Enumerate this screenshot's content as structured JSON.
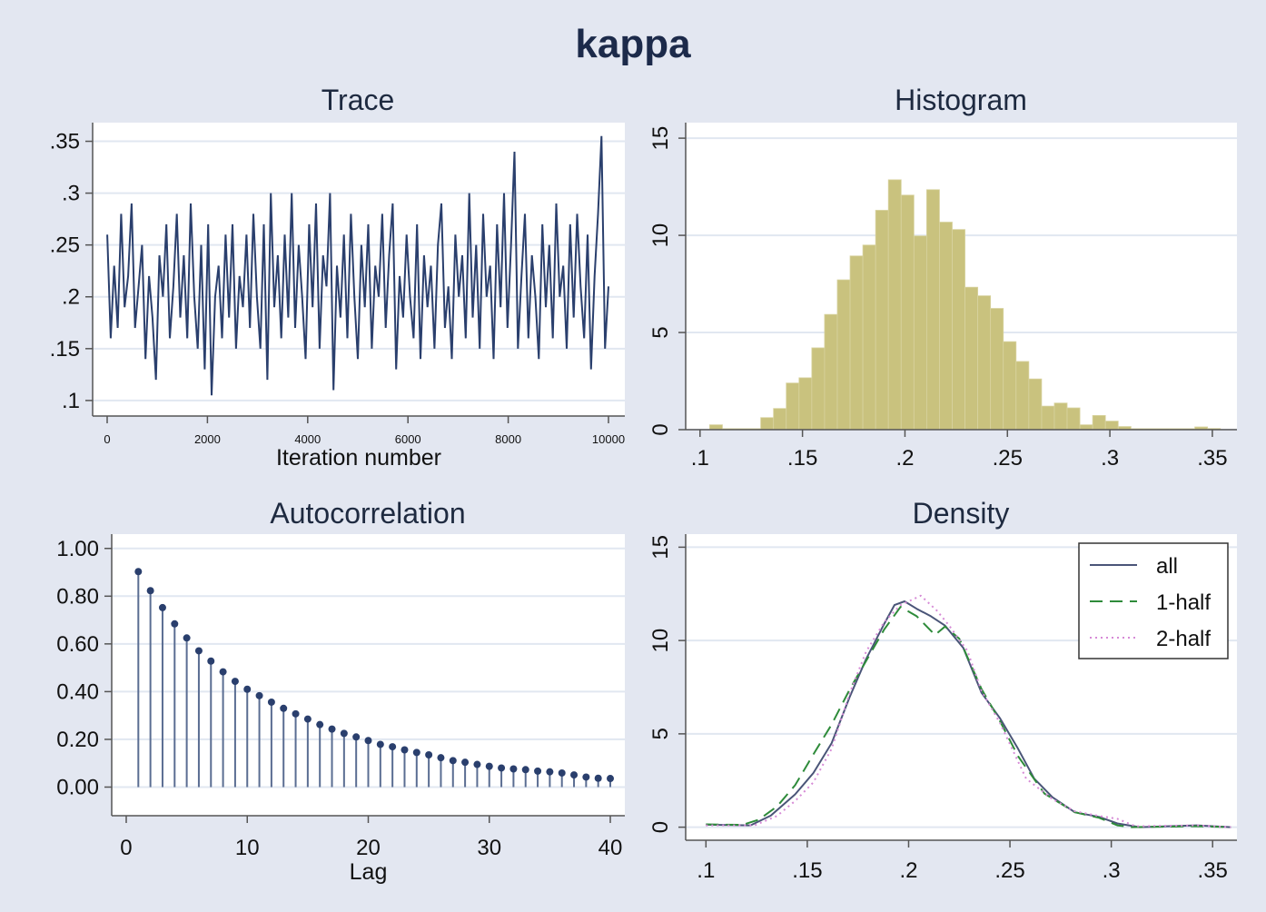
{
  "title": "kappa",
  "colors": {
    "background": "#e3e7f1",
    "line": "#2a3f6d",
    "bar": "#c9c27e",
    "grid": "#e1e7f1",
    "dash": "#2e8b3a",
    "dot": "#d68ad6"
  },
  "chart_data": [
    {
      "type": "line",
      "title": "Trace",
      "xlabel": "Iteration number",
      "ylabel": "",
      "x_range": [
        1,
        10000
      ],
      "xticks": [
        "0",
        "2000",
        "4000",
        "6000",
        "8000",
        "10000"
      ],
      "xtick_values": [
        0,
        2000,
        4000,
        6000,
        8000,
        10000
      ],
      "yticks": [
        ".1",
        ".15",
        ".2",
        ".25",
        ".3",
        ".35"
      ],
      "ytick_values": [
        0.1,
        0.15,
        0.2,
        0.25,
        0.3,
        0.35
      ],
      "ylim": [
        0.085,
        0.368
      ],
      "grid": true,
      "values": [
        0.26,
        0.16,
        0.23,
        0.17,
        0.28,
        0.19,
        0.22,
        0.29,
        0.17,
        0.21,
        0.25,
        0.14,
        0.22,
        0.18,
        0.12,
        0.24,
        0.2,
        0.27,
        0.16,
        0.21,
        0.28,
        0.18,
        0.24,
        0.16,
        0.29,
        0.2,
        0.15,
        0.25,
        0.13,
        0.27,
        0.105,
        0.2,
        0.23,
        0.16,
        0.26,
        0.18,
        0.27,
        0.15,
        0.22,
        0.19,
        0.26,
        0.17,
        0.28,
        0.2,
        0.15,
        0.27,
        0.12,
        0.3,
        0.19,
        0.24,
        0.16,
        0.26,
        0.18,
        0.3,
        0.17,
        0.25,
        0.2,
        0.14,
        0.27,
        0.19,
        0.29,
        0.15,
        0.24,
        0.21,
        0.3,
        0.11,
        0.23,
        0.18,
        0.26,
        0.16,
        0.28,
        0.2,
        0.14,
        0.25,
        0.19,
        0.27,
        0.15,
        0.23,
        0.2,
        0.28,
        0.17,
        0.24,
        0.29,
        0.13,
        0.22,
        0.18,
        0.26,
        0.2,
        0.16,
        0.27,
        0.14,
        0.24,
        0.19,
        0.23,
        0.15,
        0.25,
        0.29,
        0.17,
        0.21,
        0.14,
        0.26,
        0.2,
        0.24,
        0.16,
        0.3,
        0.18,
        0.25,
        0.15,
        0.28,
        0.2,
        0.23,
        0.14,
        0.27,
        0.19,
        0.3,
        0.17,
        0.25,
        0.34,
        0.15,
        0.22,
        0.28,
        0.16,
        0.24,
        0.2,
        0.14,
        0.27,
        0.19,
        0.25,
        0.16,
        0.29,
        0.2,
        0.23,
        0.15,
        0.27,
        0.18,
        0.28,
        0.21,
        0.16,
        0.26,
        0.13,
        0.22,
        0.28,
        0.355,
        0.15,
        0.21
      ]
    },
    {
      "type": "bar",
      "title": "Histogram",
      "xticks": [
        ".1",
        ".15",
        ".2",
        ".25",
        ".3",
        ".35"
      ],
      "xtick_values": [
        0.1,
        0.15,
        0.2,
        0.25,
        0.3,
        0.35
      ],
      "yticks": [
        "0",
        "5",
        "10",
        "15"
      ],
      "ytick_values": [
        0,
        5,
        10,
        15
      ],
      "xlim": [
        0.093,
        0.362
      ],
      "ylim": [
        0,
        15.8
      ],
      "grid": true,
      "bin_start": 0.1047,
      "bin_width": 0.00623,
      "values": [
        0.25,
        0.05,
        0.05,
        0.05,
        0.62,
        1.09,
        2.4,
        2.67,
        4.21,
        5.93,
        7.71,
        8.94,
        9.5,
        11.29,
        12.86,
        12.07,
        9.97,
        12.35,
        10.68,
        10.3,
        7.33,
        6.89,
        6.24,
        4.53,
        3.51,
        2.61,
        1.21,
        1.37,
        1.12,
        0.25,
        0.73,
        0.44,
        0.16,
        0.05,
        0.05,
        0.05,
        0.05,
        0.05,
        0.14,
        0.06
      ]
    },
    {
      "type": "bar",
      "title": "Autocorrelation",
      "xlabel": "Lag",
      "xticks": [
        "0",
        "10",
        "20",
        "30",
        "40"
      ],
      "xtick_values": [
        0,
        10,
        20,
        30,
        40
      ],
      "yticks": [
        "0.00",
        "0.20",
        "0.40",
        "0.60",
        "0.80",
        "1.00"
      ],
      "ytick_values": [
        0,
        0.2,
        0.4,
        0.6,
        0.8,
        1.0
      ],
      "xlim": [
        -1.2,
        41.2
      ],
      "ylim": [
        -0.12,
        1.06
      ],
      "grid": true,
      "lags": [
        1,
        2,
        3,
        4,
        5,
        6,
        7,
        8,
        9,
        10,
        11,
        12,
        13,
        14,
        15,
        16,
        17,
        18,
        19,
        20,
        21,
        22,
        23,
        24,
        25,
        26,
        27,
        28,
        29,
        30,
        31,
        32,
        33,
        34,
        35,
        36,
        37,
        38,
        39,
        40
      ],
      "values": [
        0.903,
        0.823,
        0.752,
        0.684,
        0.625,
        0.571,
        0.528,
        0.483,
        0.443,
        0.41,
        0.383,
        0.356,
        0.33,
        0.307,
        0.285,
        0.262,
        0.243,
        0.225,
        0.21,
        0.195,
        0.179,
        0.169,
        0.156,
        0.145,
        0.135,
        0.123,
        0.111,
        0.104,
        0.095,
        0.087,
        0.08,
        0.076,
        0.073,
        0.067,
        0.064,
        0.059,
        0.051,
        0.042,
        0.037,
        0.036
      ]
    },
    {
      "type": "line",
      "title": "Density",
      "xticks": [
        ".1",
        ".15",
        ".2",
        ".25",
        ".3",
        ".35"
      ],
      "xtick_values": [
        0.1,
        0.15,
        0.2,
        0.25,
        0.3,
        0.35
      ],
      "yticks": [
        "0",
        "5",
        "10",
        "15"
      ],
      "ytick_values": [
        0,
        5,
        10,
        15
      ],
      "xlim": [
        0.09,
        0.362
      ],
      "ylim": [
        -0.7,
        15.7
      ],
      "grid": true,
      "legend": "top-right",
      "series": [
        {
          "name": "all",
          "style": "solid",
          "x": [
            0.1,
            0.122,
            0.132,
            0.144,
            0.153,
            0.162,
            0.171,
            0.179,
            0.188,
            0.193,
            0.198,
            0.204,
            0.211,
            0.218,
            0.227,
            0.236,
            0.245,
            0.254,
            0.262,
            0.271,
            0.282,
            0.294,
            0.303,
            0.314,
            0.342,
            0.359
          ],
          "y": [
            0.13,
            0.1,
            0.62,
            1.76,
            2.9,
            4.5,
            7.0,
            9.0,
            10.9,
            11.9,
            12.1,
            11.7,
            11.3,
            10.8,
            9.6,
            7.2,
            5.85,
            4.2,
            2.6,
            1.6,
            0.8,
            0.55,
            0.2,
            0.0,
            0.1,
            0.0
          ]
        },
        {
          "name": "1-half",
          "style": "dash",
          "x": [
            0.1,
            0.118,
            0.126,
            0.135,
            0.144,
            0.153,
            0.162,
            0.171,
            0.179,
            0.188,
            0.196,
            0.204,
            0.213,
            0.218,
            0.225,
            0.236,
            0.245,
            0.254,
            0.267,
            0.282,
            0.294,
            0.303,
            0.31,
            0.342,
            0.359
          ],
          "y": [
            0.15,
            0.12,
            0.4,
            1.1,
            2.25,
            3.9,
            5.5,
            7.4,
            8.9,
            10.6,
            11.8,
            11.3,
            10.3,
            10.75,
            10.1,
            7.4,
            5.7,
            3.8,
            1.8,
            0.8,
            0.5,
            0.1,
            0.0,
            0.05,
            0.0
          ]
        },
        {
          "name": "2-half",
          "style": "dot",
          "x": [
            0.1,
            0.124,
            0.135,
            0.144,
            0.153,
            0.162,
            0.171,
            0.179,
            0.188,
            0.196,
            0.206,
            0.214,
            0.22,
            0.229,
            0.236,
            0.245,
            0.258,
            0.271,
            0.282,
            0.294,
            0.303,
            0.312,
            0.342,
            0.359
          ],
          "y": [
            0.1,
            0.1,
            0.6,
            1.4,
            2.4,
            4.2,
            7.2,
            9.4,
            11.0,
            11.9,
            12.4,
            11.6,
            10.8,
            9.45,
            7.3,
            5.6,
            2.6,
            1.5,
            0.85,
            0.6,
            0.45,
            0.05,
            0.1,
            0.0
          ]
        }
      ]
    }
  ]
}
